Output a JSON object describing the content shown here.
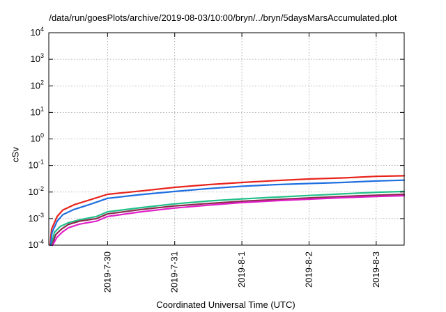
{
  "chart_data": {
    "type": "line",
    "title": "/data/run/goesPlots/archive/2019-08-03/10:00/bryn/../bryn/5daysMarsAccumulated.plot",
    "xlabel": "Coordinated Universal Time (UTC)",
    "ylabel": "cSv",
    "y_scale": "log",
    "ylim": [
      0.0001,
      10000
    ],
    "y_ticks": [
      {
        "value": 0.0001,
        "base": "10",
        "exp": "-4"
      },
      {
        "value": 0.001,
        "base": "10",
        "exp": "-3"
      },
      {
        "value": 0.01,
        "base": "10",
        "exp": "-2"
      },
      {
        "value": 0.1,
        "base": "10",
        "exp": "-1"
      },
      {
        "value": 1,
        "base": "10",
        "exp": "0"
      },
      {
        "value": 10,
        "base": "10",
        "exp": "1"
      },
      {
        "value": 100,
        "base": "10",
        "exp": "2"
      },
      {
        "value": 1000,
        "base": "10",
        "exp": "3"
      },
      {
        "value": 10000,
        "base": "10",
        "exp": "4"
      }
    ],
    "xlim": [
      "2019-07-29T03:00",
      "2019-08-03T10:00"
    ],
    "x_ticks": [
      {
        "value": "2019-07-30T00:00",
        "label": "2019-7-30"
      },
      {
        "value": "2019-07-31T00:00",
        "label": "2019-7-31"
      },
      {
        "value": "2019-08-01T00:00",
        "label": "2019-8-1"
      },
      {
        "value": "2019-08-02T00:00",
        "label": "2019-8-2"
      },
      {
        "value": "2019-08-03T00:00",
        "label": "2019-8-3"
      }
    ],
    "grid": true,
    "legend": "none",
    "series": [
      {
        "color": "#e8231c",
        "x": [
          "2019-07-29T03:30",
          "2019-07-29T04:00",
          "2019-07-29T06:00",
          "2019-07-29T08:00",
          "2019-07-29T12:00",
          "2019-07-29T18:00",
          "2019-07-30T00:00",
          "2019-07-30T12:00",
          "2019-07-31T00:00",
          "2019-07-31T12:00",
          "2019-08-01T00:00",
          "2019-08-01T12:00",
          "2019-08-02T00:00",
          "2019-08-02T12:00",
          "2019-08-03T00:00",
          "2019-08-03T10:00"
        ],
        "y": [
          0.0001,
          0.0004,
          0.0012,
          0.0021,
          0.0033,
          0.0052,
          0.0082,
          0.011,
          0.015,
          0.019,
          0.023,
          0.027,
          0.031,
          0.034,
          0.039,
          0.041
        ]
      },
      {
        "color": "#1f6fe0",
        "x": [
          "2019-07-29T03:40",
          "2019-07-29T04:10",
          "2019-07-29T06:00",
          "2019-07-29T08:00",
          "2019-07-29T12:00",
          "2019-07-29T18:00",
          "2019-07-30T00:00",
          "2019-07-30T12:00",
          "2019-07-31T00:00",
          "2019-07-31T12:00",
          "2019-08-01T00:00",
          "2019-08-01T12:00",
          "2019-08-02T00:00",
          "2019-08-02T12:00",
          "2019-08-03T00:00",
          "2019-08-03T10:00"
        ],
        "y": [
          0.0001,
          0.0003,
          0.0008,
          0.0014,
          0.0022,
          0.0035,
          0.0058,
          0.008,
          0.0105,
          0.0135,
          0.0165,
          0.019,
          0.021,
          0.023,
          0.026,
          0.028
        ]
      },
      {
        "color": "#22c08a",
        "x": [
          "2019-07-29T04:00",
          "2019-07-29T05:00",
          "2019-07-29T07:00",
          "2019-07-29T10:00",
          "2019-07-29T14:00",
          "2019-07-29T20:00",
          "2019-07-30T00:00",
          "2019-07-30T12:00",
          "2019-07-31T00:00",
          "2019-07-31T12:00",
          "2019-08-01T00:00",
          "2019-08-01T12:00",
          "2019-08-02T00:00",
          "2019-08-02T12:00",
          "2019-08-03T00:00",
          "2019-08-03T10:00"
        ],
        "y": [
          0.0001,
          0.0003,
          0.0005,
          0.0007,
          0.0009,
          0.0012,
          0.0018,
          0.0026,
          0.0036,
          0.0046,
          0.0055,
          0.0064,
          0.0074,
          0.0085,
          0.0098,
          0.0105
        ]
      },
      {
        "color": "#8a2a4a",
        "x": [
          "2019-07-29T04:10",
          "2019-07-29T05:30",
          "2019-07-29T07:30",
          "2019-07-29T10:00",
          "2019-07-29T14:00",
          "2019-07-29T20:00",
          "2019-07-30T00:00",
          "2019-07-30T12:00",
          "2019-07-31T00:00",
          "2019-07-31T12:00",
          "2019-08-01T00:00",
          "2019-08-01T12:00",
          "2019-08-02T00:00",
          "2019-08-02T12:00",
          "2019-08-03T00:00",
          "2019-08-03T10:00"
        ],
        "y": [
          0.0001,
          0.00025,
          0.0004,
          0.0006,
          0.0008,
          0.001,
          0.0015,
          0.0022,
          0.003,
          0.0037,
          0.0045,
          0.0052,
          0.006,
          0.0068,
          0.0076,
          0.0082
        ]
      },
      {
        "color": "#e020c8",
        "x": [
          "2019-07-29T04:20",
          "2019-07-29T06:00",
          "2019-07-29T08:00",
          "2019-07-29T10:00",
          "2019-07-29T14:00",
          "2019-07-29T20:00",
          "2019-07-30T00:00",
          "2019-07-30T12:00",
          "2019-07-31T00:00",
          "2019-07-31T12:00",
          "2019-08-01T00:00",
          "2019-08-01T12:00",
          "2019-08-02T00:00",
          "2019-08-02T12:00",
          "2019-08-03T00:00",
          "2019-08-03T10:00"
        ],
        "y": [
          0.0001,
          0.0002,
          0.00032,
          0.00045,
          0.00062,
          0.0008,
          0.0012,
          0.0018,
          0.0025,
          0.0032,
          0.004,
          0.0047,
          0.0054,
          0.0061,
          0.0068,
          0.0073
        ]
      }
    ]
  }
}
